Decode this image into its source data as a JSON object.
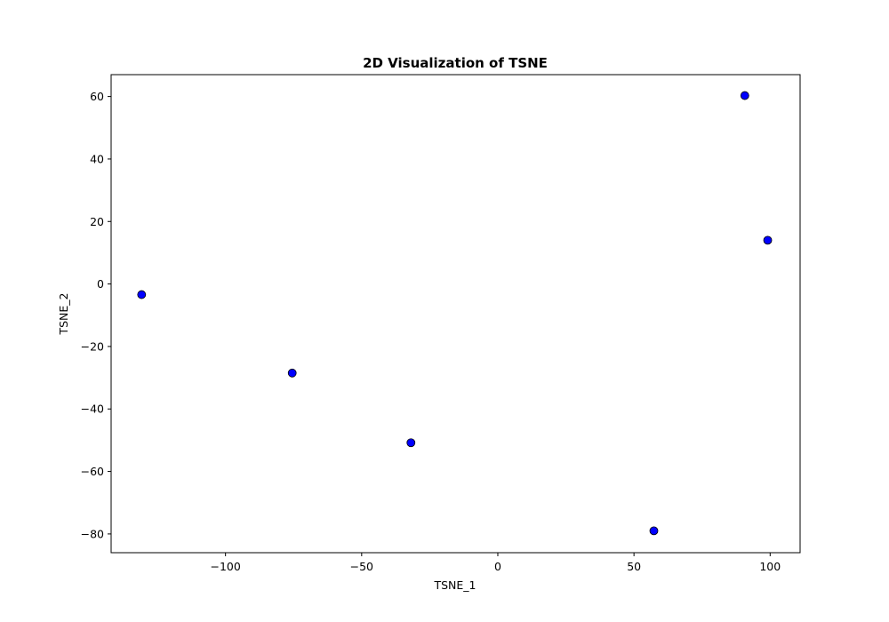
{
  "chart_data": {
    "type": "scatter",
    "title": "2D Visualization of TSNE",
    "xlabel": "TSNE_1",
    "ylabel": "TSNE_2",
    "xlim": [
      -142,
      111
    ],
    "ylim": [
      -86,
      67
    ],
    "x_ticks": [
      -100,
      -50,
      0,
      50,
      100
    ],
    "x_tick_labels": [
      "−100",
      "−50",
      "0",
      "50",
      "100"
    ],
    "y_ticks": [
      -80,
      -60,
      -40,
      -20,
      0,
      20,
      40,
      60
    ],
    "y_tick_labels": [
      "−80",
      "−60",
      "−40",
      "−20",
      "0",
      "20",
      "40",
      "60"
    ],
    "grid": false,
    "legend": false,
    "series": [
      {
        "points": [
          {
            "x": -130.8,
            "y": -3.4
          },
          {
            "x": -75.5,
            "y": -28.5
          },
          {
            "x": -31.9,
            "y": -50.8
          },
          {
            "x": 57.3,
            "y": -79.0
          },
          {
            "x": 90.7,
            "y": 60.3
          },
          {
            "x": 99.1,
            "y": 14.0
          }
        ]
      }
    ],
    "marker_fill": "#0000ff",
    "marker_edge": "#000000"
  }
}
